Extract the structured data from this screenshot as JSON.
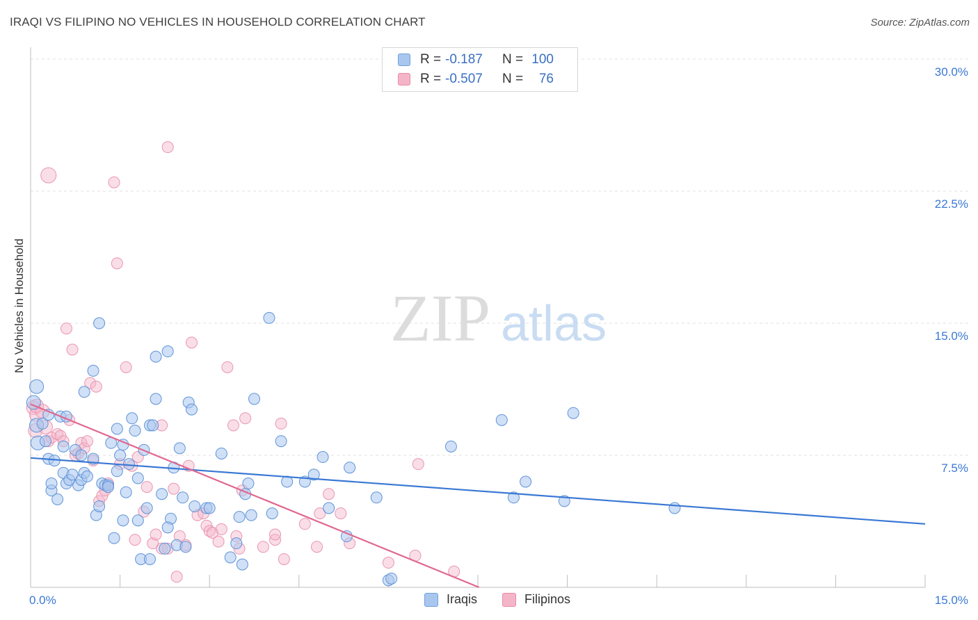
{
  "header": {
    "title": "IRAQI VS FILIPINO NO VEHICLES IN HOUSEHOLD CORRELATION CHART",
    "source": "Source: ZipAtlas.com"
  },
  "watermark": {
    "zip": "ZIP",
    "atlas": "atlas"
  },
  "legend": {
    "rows": [
      {
        "r_label": "R =",
        "r_value": "-0.187",
        "n_label": "N =",
        "n_value": "100",
        "color": "#a9c7ee"
      },
      {
        "r_label": "R =",
        "r_value": "-0.507",
        "n_label": "N =",
        "n_value": "76",
        "color": "#f5b5c9"
      }
    ]
  },
  "bottom_legend": {
    "items": [
      {
        "label": "Iraqis",
        "color": "#a9c7ee"
      },
      {
        "label": "Filipinos",
        "color": "#f5b5c9"
      }
    ]
  },
  "chart_data": {
    "type": "scatter",
    "title": "IRAQI VS FILIPINO NO VEHICLES IN HOUSEHOLD CORRELATION CHART",
    "xlabel": "",
    "ylabel": "No Vehicles in Household",
    "xlim": [
      0,
      15
    ],
    "ylim": [
      0,
      30
    ],
    "x_tick_labels": [
      "0.0%",
      "15.0%"
    ],
    "y_ticks": [
      7.5,
      15,
      22.5,
      30
    ],
    "y_tick_labels": [
      "7.5%",
      "15.0%",
      "22.5%",
      "30.0%"
    ],
    "grid": true,
    "legend_position": "top-center",
    "colors": {
      "iraqis": "#3a78d4",
      "filipinos": "#e0688f"
    },
    "series": [
      {
        "name": "Iraqis",
        "trend": {
          "x": [
            0,
            15
          ],
          "y": [
            7.35,
            3.6
          ]
        },
        "points": [
          [
            0.05,
            10.5
          ],
          [
            0.1,
            11.4
          ],
          [
            0.1,
            9.2
          ],
          [
            0.12,
            8.2
          ],
          [
            0.2,
            9.3
          ],
          [
            0.25,
            8.3
          ],
          [
            0.3,
            9.8
          ],
          [
            0.3,
            7.3
          ],
          [
            0.35,
            5.5
          ],
          [
            0.35,
            5.9
          ],
          [
            0.4,
            7.2
          ],
          [
            0.45,
            5.0
          ],
          [
            0.5,
            9.7
          ],
          [
            0.55,
            6.5
          ],
          [
            0.55,
            8.0
          ],
          [
            0.6,
            5.9
          ],
          [
            0.65,
            6.1
          ],
          [
            0.7,
            6.4
          ],
          [
            0.75,
            7.8
          ],
          [
            0.8,
            5.8
          ],
          [
            0.85,
            7.5
          ],
          [
            0.85,
            6.1
          ],
          [
            0.9,
            6.5
          ],
          [
            0.95,
            6.3
          ],
          [
            0.9,
            11.1
          ],
          [
            1.05,
            7.3
          ],
          [
            1.05,
            12.3
          ],
          [
            1.1,
            4.1
          ],
          [
            1.15,
            4.6
          ],
          [
            1.15,
            15.0
          ],
          [
            1.2,
            5.9
          ],
          [
            1.25,
            5.8
          ],
          [
            1.3,
            5.8
          ],
          [
            1.35,
            8.2
          ],
          [
            1.4,
            2.8
          ],
          [
            1.45,
            9.0
          ],
          [
            1.45,
            6.6
          ],
          [
            1.5,
            7.5
          ],
          [
            1.55,
            8.1
          ],
          [
            1.55,
            3.8
          ],
          [
            1.6,
            5.4
          ],
          [
            1.65,
            7.0
          ],
          [
            1.7,
            9.6
          ],
          [
            1.75,
            8.9
          ],
          [
            1.8,
            3.8
          ],
          [
            1.8,
            6.2
          ],
          [
            1.85,
            1.6
          ],
          [
            1.9,
            7.8
          ],
          [
            1.95,
            4.5
          ],
          [
            2.0,
            9.2
          ],
          [
            2.05,
            9.2
          ],
          [
            2.1,
            10.7
          ],
          [
            2.1,
            13.1
          ],
          [
            2.2,
            5.3
          ],
          [
            2.25,
            2.2
          ],
          [
            2.3,
            13.4
          ],
          [
            2.35,
            3.9
          ],
          [
            2.3,
            3.4
          ],
          [
            2.4,
            6.8
          ],
          [
            2.45,
            2.4
          ],
          [
            2.5,
            7.9
          ],
          [
            2.55,
            5.1
          ],
          [
            2.6,
            2.3
          ],
          [
            2.65,
            10.5
          ],
          [
            2.7,
            10.1
          ],
          [
            2.75,
            4.6
          ],
          [
            2.95,
            4.5
          ],
          [
            3.0,
            4.5
          ],
          [
            3.2,
            7.6
          ],
          [
            3.35,
            1.7
          ],
          [
            3.45,
            2.5
          ],
          [
            3.5,
            4.0
          ],
          [
            3.55,
            1.3
          ],
          [
            3.6,
            5.3
          ],
          [
            3.65,
            5.9
          ],
          [
            3.7,
            4.1
          ],
          [
            3.75,
            10.7
          ],
          [
            4.0,
            15.3
          ],
          [
            4.05,
            4.2
          ],
          [
            4.2,
            8.3
          ],
          [
            4.3,
            6.0
          ],
          [
            4.6,
            6.0
          ],
          [
            4.75,
            6.4
          ],
          [
            4.9,
            7.4
          ],
          [
            5.0,
            4.5
          ],
          [
            5.3,
            2.9
          ],
          [
            5.35,
            6.8
          ],
          [
            5.8,
            5.1
          ],
          [
            6.0,
            0.4
          ],
          [
            6.05,
            0.5
          ],
          [
            7.05,
            8.0
          ],
          [
            7.9,
            9.5
          ],
          [
            8.3,
            6.0
          ],
          [
            8.1,
            5.1
          ],
          [
            8.95,
            4.9
          ],
          [
            9.1,
            9.9
          ],
          [
            10.8,
            4.5
          ],
          [
            2.0,
            1.6
          ],
          [
            1.3,
            5.7
          ],
          [
            0.6,
            9.7
          ]
        ]
      },
      {
        "name": "Filipinos",
        "trend": {
          "x": [
            0,
            7.52
          ],
          "y": [
            10.4,
            0.0
          ]
        },
        "points": [
          [
            0.05,
            10.2
          ],
          [
            0.08,
            8.9
          ],
          [
            0.1,
            9.8
          ],
          [
            0.1,
            10.3
          ],
          [
            0.2,
            10.0
          ],
          [
            0.25,
            9.1
          ],
          [
            0.3,
            8.3
          ],
          [
            0.35,
            8.5
          ],
          [
            0.3,
            23.4
          ],
          [
            0.45,
            8.7
          ],
          [
            0.5,
            8.6
          ],
          [
            0.55,
            8.3
          ],
          [
            0.6,
            14.7
          ],
          [
            0.65,
            9.5
          ],
          [
            0.7,
            13.5
          ],
          [
            0.75,
            7.5
          ],
          [
            0.8,
            7.6
          ],
          [
            0.85,
            8.2
          ],
          [
            0.9,
            7.9
          ],
          [
            0.95,
            8.3
          ],
          [
            1.0,
            11.6
          ],
          [
            1.05,
            7.2
          ],
          [
            1.1,
            11.4
          ],
          [
            1.15,
            4.9
          ],
          [
            1.2,
            5.2
          ],
          [
            1.25,
            5.5
          ],
          [
            1.3,
            5.9
          ],
          [
            1.4,
            23.0
          ],
          [
            1.45,
            18.4
          ],
          [
            1.5,
            7.0
          ],
          [
            1.6,
            12.5
          ],
          [
            1.7,
            6.9
          ],
          [
            1.75,
            2.7
          ],
          [
            1.8,
            7.4
          ],
          [
            1.9,
            4.3
          ],
          [
            1.95,
            5.7
          ],
          [
            2.05,
            2.5
          ],
          [
            2.1,
            3.0
          ],
          [
            2.2,
            9.2
          ],
          [
            2.2,
            2.2
          ],
          [
            2.3,
            25.0
          ],
          [
            2.3,
            2.2
          ],
          [
            2.4,
            5.6
          ],
          [
            2.45,
            0.6
          ],
          [
            2.5,
            2.9
          ],
          [
            2.6,
            2.4
          ],
          [
            2.65,
            6.9
          ],
          [
            2.7,
            13.9
          ],
          [
            2.8,
            4.1
          ],
          [
            2.9,
            4.2
          ],
          [
            2.95,
            3.5
          ],
          [
            3.0,
            3.2
          ],
          [
            3.05,
            3.1
          ],
          [
            3.15,
            2.6
          ],
          [
            3.2,
            3.3
          ],
          [
            3.3,
            12.5
          ],
          [
            3.4,
            9.2
          ],
          [
            3.45,
            2.9
          ],
          [
            3.5,
            2.2
          ],
          [
            3.55,
            5.5
          ],
          [
            3.6,
            9.6
          ],
          [
            3.9,
            2.3
          ],
          [
            4.1,
            2.7
          ],
          [
            4.1,
            3.0
          ],
          [
            4.2,
            9.3
          ],
          [
            4.25,
            1.6
          ],
          [
            4.6,
            3.6
          ],
          [
            4.8,
            2.3
          ],
          [
            4.85,
            4.2
          ],
          [
            5.0,
            5.3
          ],
          [
            5.2,
            4.2
          ],
          [
            5.35,
            2.5
          ],
          [
            6.0,
            1.4
          ],
          [
            6.45,
            1.8
          ],
          [
            6.5,
            7.0
          ],
          [
            7.1,
            0.9
          ]
        ]
      }
    ]
  }
}
